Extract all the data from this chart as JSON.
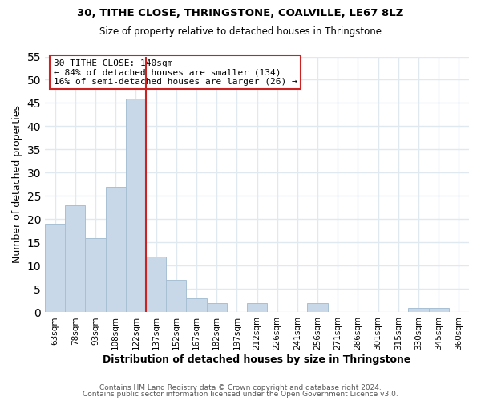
{
  "title1": "30, TITHE CLOSE, THRINGSTONE, COALVILLE, LE67 8LZ",
  "title2": "Size of property relative to detached houses in Thringstone",
  "xlabel": "Distribution of detached houses by size in Thringstone",
  "ylabel": "Number of detached properties",
  "bar_color": "#c8d8e8",
  "bar_edge_color": "#a8c0d4",
  "bins": [
    "63sqm",
    "78sqm",
    "93sqm",
    "108sqm",
    "122sqm",
    "137sqm",
    "152sqm",
    "167sqm",
    "182sqm",
    "197sqm",
    "212sqm",
    "226sqm",
    "241sqm",
    "256sqm",
    "271sqm",
    "286sqm",
    "301sqm",
    "315sqm",
    "330sqm",
    "345sqm",
    "360sqm"
  ],
  "values": [
    19,
    23,
    16,
    27,
    46,
    12,
    7,
    3,
    2,
    0,
    2,
    0,
    0,
    2,
    0,
    0,
    0,
    0,
    1,
    1,
    0
  ],
  "vline_index": 5,
  "vline_color": "#cc2222",
  "ylim": [
    0,
    55
  ],
  "yticks": [
    0,
    5,
    10,
    15,
    20,
    25,
    30,
    35,
    40,
    45,
    50,
    55
  ],
  "annotation_line1": "30 TITHE CLOSE: 140sqm",
  "annotation_line2": "← 84% of detached houses are smaller (134)",
  "annotation_line3": "16% of semi-detached houses are larger (26) →",
  "footnote1": "Contains HM Land Registry data © Crown copyright and database right 2024.",
  "footnote2": "Contains public sector information licensed under the Open Government Licence v3.0.",
  "background_color": "#ffffff",
  "grid_color": "#e0e8f0",
  "annotation_box_color": "#cc2222"
}
